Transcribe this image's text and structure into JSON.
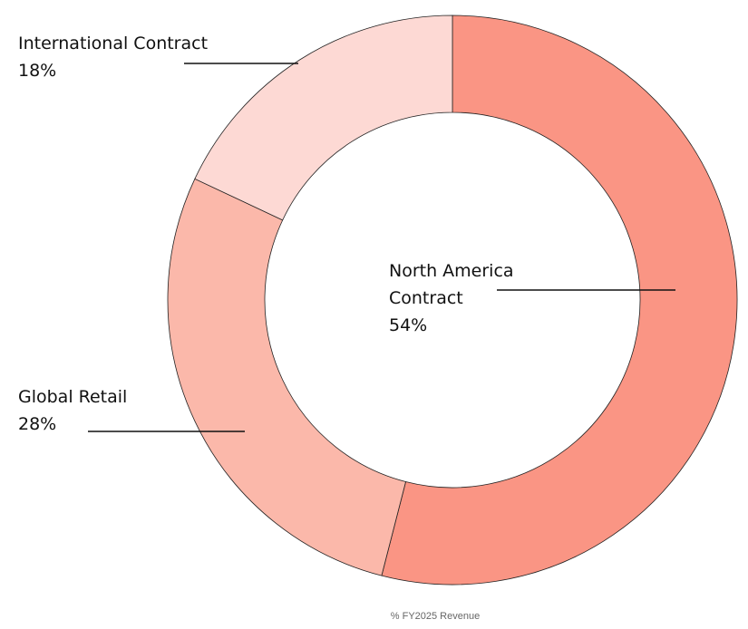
{
  "chart_data": {
    "type": "donut",
    "caption": "% FY2025 Revenue",
    "categories": [
      "North America Contract",
      "Global Retail",
      "International Contract"
    ],
    "values": [
      54,
      28,
      18
    ],
    "value_labels": [
      "54%",
      "28%",
      "18%"
    ],
    "colors": [
      "#fa9584",
      "#fbb8aa",
      "#fdd9d4"
    ]
  }
}
